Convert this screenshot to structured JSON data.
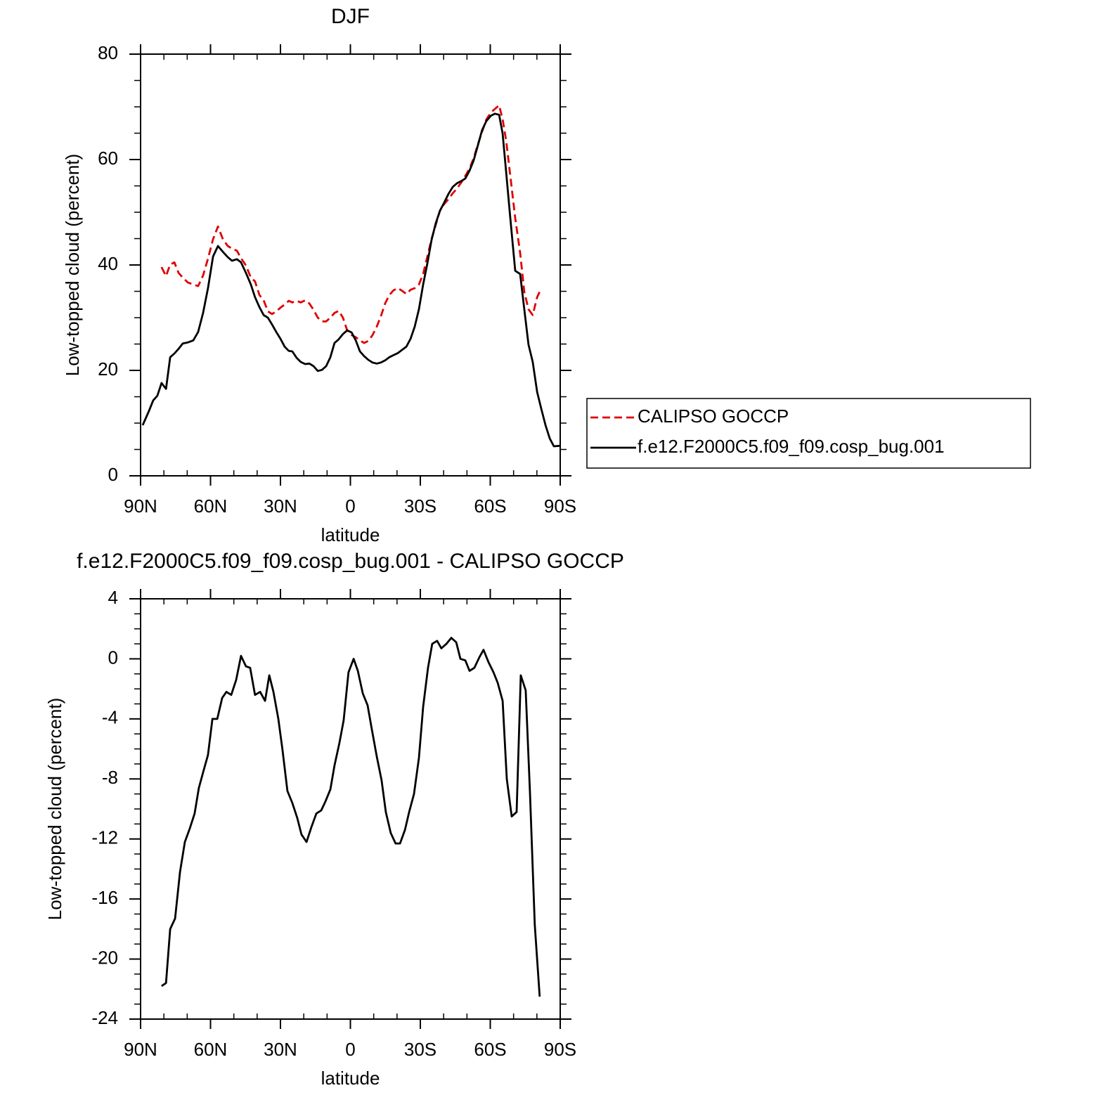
{
  "chart_data": [
    {
      "type": "line",
      "title": "DJF",
      "xlabel": "latitude",
      "ylabel": "Low-topped cloud (percent)",
      "xlim": [
        90,
        -90
      ],
      "xticks": [
        {
          "value": 90,
          "label": "90N"
        },
        {
          "value": 60,
          "label": "60N"
        },
        {
          "value": 30,
          "label": "30N"
        },
        0,
        {
          "value": -30,
          "label": "30S"
        },
        {
          "value": -60,
          "label": "60S"
        },
        {
          "value": -90,
          "label": "90S"
        }
      ],
      "xminorticks": [
        80,
        70,
        50,
        40,
        20,
        10,
        -10,
        -20,
        -40,
        -50,
        -70,
        -80
      ],
      "ylim": [
        0,
        80
      ],
      "yticks": [
        0,
        20,
        40,
        60,
        80
      ],
      "yminorticks": [
        5,
        10,
        15,
        25,
        30,
        35,
        45,
        50,
        55,
        65,
        70,
        75
      ],
      "legend": "right",
      "series": [
        {
          "name": "CALIPSO GOCCP",
          "color": "#e00000",
          "linestyle": "dashed",
          "x": [
            81.0,
            79.1,
            77.3,
            75.5,
            73.7,
            71.9,
            69.8,
            67.4,
            65.3,
            63.2,
            61.1,
            58.9,
            56.8,
            54.7,
            52.6,
            50.8,
            48.7,
            46.9,
            44.8,
            42.7,
            40.9,
            39.0,
            37.2,
            35.4,
            33.6,
            31.8,
            30.0,
            28.2,
            26.4,
            24.9,
            23.1,
            21.3,
            19.4,
            17.6,
            15.8,
            14.0,
            12.2,
            10.4,
            8.6,
            6.8,
            5.0,
            3.2,
            1.4,
            -0.5,
            -2.3,
            -4.1,
            -5.9,
            -7.7,
            -9.5,
            -11.3,
            -13.1,
            -14.9,
            -16.7,
            -18.5,
            -20.4,
            -22.2,
            -24.0,
            -25.8,
            -27.6,
            -29.4,
            -31.2,
            -33.0,
            -34.8,
            -36.6,
            -38.4,
            -40.3,
            -42.1,
            -43.9,
            -45.7,
            -47.5,
            -49.3,
            -51.1,
            -52.9,
            -54.7,
            -56.5,
            -58.3,
            -60.2,
            -62.0,
            -63.8,
            -65.3,
            -66.8,
            -68.6,
            -70.7,
            -72.8,
            -74.6,
            -76.4,
            -78.2,
            -80.1,
            -81.9
          ],
          "values": [
            39.6,
            37.9,
            40.1,
            40.5,
            38.5,
            37.6,
            36.7,
            36.3,
            36.0,
            38.0,
            41.2,
            44.9,
            47.3,
            44.9,
            43.6,
            43.1,
            42.7,
            41.3,
            39.9,
            37.6,
            36.9,
            34.3,
            33.3,
            31.2,
            30.7,
            31.2,
            31.9,
            32.5,
            33.2,
            32.9,
            33.2,
            32.9,
            33.3,
            32.7,
            31.5,
            30.0,
            29.3,
            29.3,
            30.0,
            30.9,
            31.3,
            30.0,
            27.6,
            26.7,
            26.3,
            25.7,
            25.2,
            25.6,
            26.7,
            28.3,
            30.3,
            32.7,
            34.3,
            35.2,
            35.6,
            35.1,
            34.5,
            35.3,
            35.6,
            36.3,
            38.3,
            41.6,
            44.9,
            47.6,
            50.3,
            51.6,
            52.5,
            53.6,
            54.5,
            55.6,
            56.9,
            58.3,
            60.3,
            62.9,
            65.3,
            67.6,
            68.9,
            69.6,
            70.3,
            67.6,
            63.6,
            56.9,
            48.9,
            42.3,
            34.9,
            31.6,
            30.5,
            33.9,
            35.6
          ]
        },
        {
          "name": "f.e12.F2000C5.f09_f09.cosp_bug.001",
          "color": "#000000",
          "linestyle": "solid",
          "x": [
            89.1,
            86.4,
            84.6,
            82.8,
            81.0,
            79.1,
            77.3,
            75.5,
            73.7,
            71.9,
            69.8,
            67.4,
            65.3,
            63.2,
            61.1,
            58.9,
            56.8,
            54.7,
            52.6,
            50.8,
            48.7,
            46.9,
            44.8,
            42.7,
            40.9,
            39.0,
            37.2,
            35.4,
            33.6,
            31.8,
            30.0,
            28.2,
            26.4,
            24.9,
            23.1,
            21.3,
            19.4,
            17.6,
            15.8,
            14.0,
            12.2,
            10.4,
            8.6,
            6.8,
            5.0,
            3.2,
            1.4,
            -0.5,
            -2.3,
            -4.1,
            -5.9,
            -7.7,
            -9.5,
            -11.3,
            -13.1,
            -14.9,
            -16.7,
            -18.5,
            -20.4,
            -22.2,
            -24.0,
            -25.8,
            -27.6,
            -29.4,
            -31.2,
            -33.0,
            -34.8,
            -36.6,
            -38.4,
            -40.3,
            -42.1,
            -43.9,
            -45.7,
            -47.5,
            -49.3,
            -51.1,
            -52.9,
            -54.7,
            -56.5,
            -58.3,
            -60.2,
            -62.0,
            -63.8,
            -65.3,
            -66.8,
            -68.6,
            -70.7,
            -72.8,
            -74.6,
            -76.4,
            -78.2,
            -80.1,
            -81.9,
            -83.7,
            -85.5,
            -87.3,
            -89.7
          ],
          "values": [
            9.6,
            12.3,
            14.3,
            15.2,
            17.6,
            16.5,
            22.5,
            23.2,
            24.1,
            25.1,
            25.3,
            25.7,
            27.3,
            30.9,
            35.6,
            41.6,
            43.6,
            42.5,
            41.5,
            40.8,
            41.1,
            40.5,
            38.5,
            36.3,
            33.9,
            32.0,
            30.5,
            30.0,
            28.7,
            27.3,
            26.0,
            24.5,
            23.7,
            23.6,
            22.4,
            21.6,
            21.2,
            21.3,
            20.8,
            19.9,
            20.1,
            20.8,
            22.5,
            25.2,
            25.9,
            26.9,
            27.6,
            27.2,
            25.7,
            23.6,
            22.7,
            22.0,
            21.5,
            21.3,
            21.5,
            21.9,
            22.5,
            22.9,
            23.3,
            23.9,
            24.5,
            26.0,
            28.3,
            31.6,
            36.3,
            40.3,
            44.7,
            47.9,
            50.3,
            51.9,
            53.5,
            54.8,
            55.5,
            55.9,
            56.4,
            57.9,
            59.9,
            62.7,
            65.6,
            67.3,
            68.3,
            68.7,
            68.5,
            64.9,
            57.6,
            48.9,
            38.9,
            38.3,
            31.6,
            24.9,
            21.6,
            15.9,
            12.7,
            9.6,
            7.1,
            5.6,
            5.7
          ]
        }
      ]
    },
    {
      "type": "line",
      "title": "f.e12.F2000C5.f09_f09.cosp_bug.001 - CALIPSO GOCCP",
      "xlabel": "latitude",
      "ylabel": "Low-topped cloud (percent)",
      "xlim": [
        90,
        -90
      ],
      "xticks": [
        {
          "value": 90,
          "label": "90N"
        },
        {
          "value": 60,
          "label": "60N"
        },
        {
          "value": 30,
          "label": "30N"
        },
        0,
        {
          "value": -30,
          "label": "30S"
        },
        {
          "value": -60,
          "label": "60S"
        },
        {
          "value": -90,
          "label": "90S"
        }
      ],
      "xminorticks": [
        80,
        70,
        50,
        40,
        20,
        10,
        -10,
        -20,
        -40,
        -50,
        -70,
        -80
      ],
      "ylim": [
        -24,
        4
      ],
      "yticks": [
        -24,
        -20,
        -16,
        -12,
        -8,
        -4,
        0,
        4
      ],
      "yminorticks": [
        -23,
        -22,
        -21,
        -19,
        -18,
        -17,
        -15,
        -14,
        -13,
        -11,
        -10,
        -9,
        -7,
        -6,
        -5,
        -3,
        -2,
        -1,
        1,
        2,
        3
      ],
      "color": "#000000",
      "linestyle": "solid",
      "x": [
        81.0,
        79.1,
        77.3,
        75.2,
        73.1,
        71.0,
        68.9,
        66.8,
        65.0,
        62.9,
        61.1,
        59.2,
        57.1,
        55.0,
        53.2,
        51.1,
        49.0,
        46.9,
        44.8,
        43.0,
        40.9,
        38.7,
        36.6,
        34.8,
        33.0,
        30.9,
        29.1,
        27.0,
        24.9,
        22.8,
        21.0,
        18.8,
        16.7,
        14.6,
        12.5,
        10.7,
        8.6,
        6.8,
        4.7,
        2.9,
        0.8,
        -1.4,
        -3.2,
        -5.3,
        -7.4,
        -9.2,
        -11.3,
        -13.4,
        -15.2,
        -17.3,
        -19.4,
        -21.3,
        -23.4,
        -25.2,
        -27.3,
        -29.4,
        -31.2,
        -33.3,
        -35.1,
        -37.2,
        -39.0,
        -41.2,
        -43.3,
        -45.4,
        -47.2,
        -49.3,
        -51.1,
        -53.2,
        -55.3,
        -57.1,
        -59.2,
        -61.4,
        -63.2,
        -65.3,
        -67.1,
        -69.2,
        -71.3,
        -73.1,
        -75.2,
        -77.0,
        -79.1,
        -81.2
      ],
      "values": [
        -21.8,
        -21.6,
        -18.0,
        -17.3,
        -14.2,
        -12.2,
        -11.3,
        -10.3,
        -8.6,
        -7.4,
        -6.4,
        -4.0,
        -4.0,
        -2.6,
        -2.2,
        -2.4,
        -1.4,
        0.2,
        -0.5,
        -0.6,
        -2.4,
        -2.2,
        -2.8,
        -1.1,
        -2.2,
        -4.0,
        -6.1,
        -8.8,
        -9.6,
        -10.6,
        -11.7,
        -12.2,
        -11.2,
        -10.3,
        -10.1,
        -9.5,
        -8.7,
        -7.1,
        -5.6,
        -4.1,
        -0.9,
        0.0,
        -0.8,
        -2.3,
        -3.1,
        -4.7,
        -6.5,
        -8.1,
        -10.2,
        -11.6,
        -12.3,
        -12.3,
        -11.4,
        -10.2,
        -9.0,
        -6.6,
        -3.2,
        -0.6,
        1.0,
        1.2,
        0.7,
        1.0,
        1.4,
        1.1,
        0.0,
        -0.1,
        -0.8,
        -0.6,
        0.1,
        0.6,
        -0.2,
        -0.9,
        -1.6,
        -2.8,
        -8.0,
        -10.5,
        -10.2,
        -1.1,
        -2.1,
        -8.8,
        -17.7,
        -22.5
      ]
    }
  ]
}
